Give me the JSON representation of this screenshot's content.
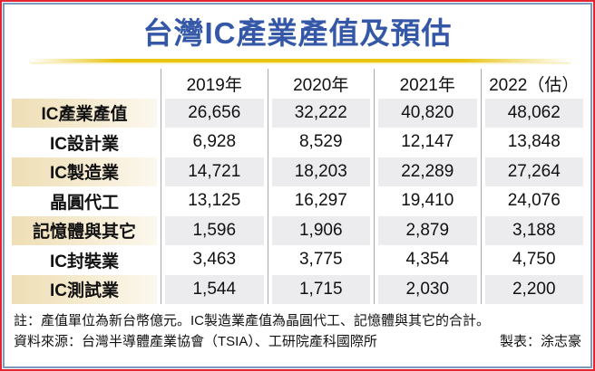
{
  "title": "台灣IC產業產值及預估",
  "colors": {
    "title_blue": "#3457a7",
    "outer_border_red": "#e32531",
    "inner_border_blue": "#7d99bd",
    "gold_rule": "#e8c413",
    "label_cream": "#efdeb5",
    "shaded_cell_gray": "#ececef",
    "divider_gray": "#a9a9a9",
    "text_black": "#111111"
  },
  "table": {
    "columns": [
      "",
      "2019年",
      "2020年",
      "2021年",
      "2022（估）"
    ],
    "rows": [
      {
        "label": "IC產業產值",
        "values": [
          "26,656",
          "32,222",
          "40,820",
          "48,062"
        ]
      },
      {
        "label": "IC設計業",
        "values": [
          "6,928",
          "8,529",
          "12,147",
          "13,848"
        ]
      },
      {
        "label": "IC製造業",
        "values": [
          "14,721",
          "18,203",
          "22,289",
          "27,264"
        ]
      },
      {
        "label": "晶圓代工",
        "values": [
          "13,125",
          "16,297",
          "19,410",
          "24,076"
        ]
      },
      {
        "label": "記憶體與其它",
        "values": [
          "1,596",
          "1,906",
          "2,879",
          "3,188"
        ]
      },
      {
        "label": "IC封裝業",
        "values": [
          "3,463",
          "3,775",
          "4,354",
          "4,750"
        ]
      },
      {
        "label": "IC測試業",
        "values": [
          "1,544",
          "1,715",
          "2,030",
          "2,200"
        ]
      }
    ]
  },
  "notes": {
    "note": "註：產值單位為新台幣億元。IC製造業產值為晶圓代工、記憶體與其它的合計。",
    "source": "資料來源：台灣半導體產業協會（TSIA）、工研院產科國際所",
    "credit": "製表：涂志豪"
  },
  "chart_data": {
    "type": "table",
    "title": "台灣IC產業產值及預估",
    "unit": "新台幣億元",
    "categories": [
      "2019年",
      "2020年",
      "2021年",
      "2022（估）"
    ],
    "series": [
      {
        "name": "IC產業產值",
        "values": [
          26656,
          32222,
          40820,
          48062
        ]
      },
      {
        "name": "IC設計業",
        "values": [
          6928,
          8529,
          12147,
          13848
        ]
      },
      {
        "name": "IC製造業",
        "values": [
          14721,
          18203,
          22289,
          27264
        ]
      },
      {
        "name": "晶圓代工",
        "values": [
          13125,
          16297,
          19410,
          24076
        ]
      },
      {
        "name": "記憶體與其它",
        "values": [
          1596,
          1906,
          2879,
          3188
        ]
      },
      {
        "name": "IC封裝業",
        "values": [
          3463,
          3775,
          4354,
          4750
        ]
      },
      {
        "name": "IC測試業",
        "values": [
          1544,
          1715,
          2030,
          2200
        ]
      }
    ],
    "footnote": "註：產值單位為新台幣億元。IC製造業產值為晶圓代工、記憶體與其它的合計。",
    "source": "資料來源：台灣半導體產業協會（TSIA）、工研院產科國際所",
    "credit": "製表：涂志豪"
  }
}
